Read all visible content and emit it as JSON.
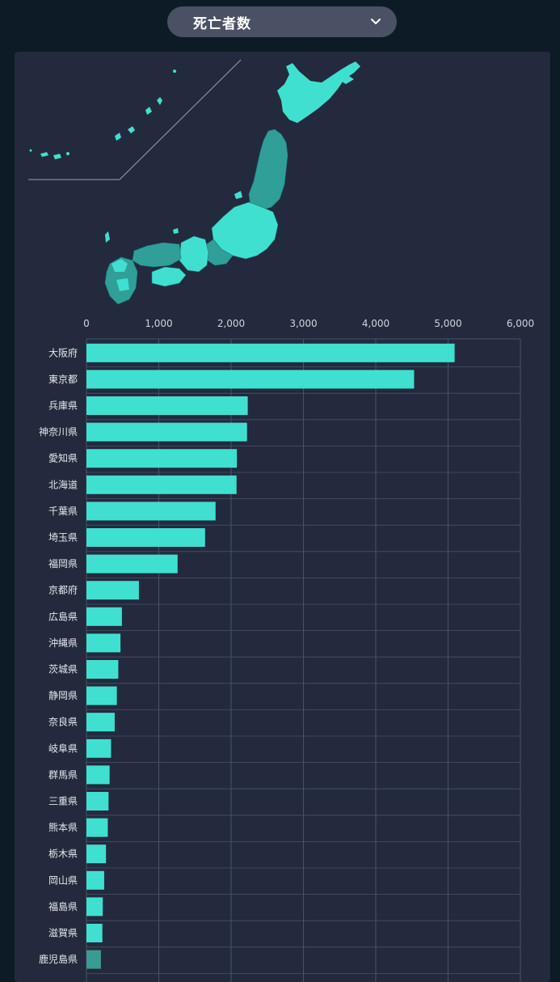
{
  "metric_selector": {
    "selected": "死亡者数",
    "icon": "chevron-down-icon"
  },
  "colors": {
    "background": "#0d1b27",
    "panel": "#232a3d",
    "bar": "#40e0d0",
    "bar_muted": "#3a9a94",
    "map_fill": "#40e0d0",
    "map_dark": "#2f9f98",
    "grid": "#4a5266"
  },
  "chart_data": {
    "type": "bar",
    "orientation": "horizontal",
    "xlim": [
      0,
      6000
    ],
    "x_ticks": [
      "0",
      "1,000",
      "2,000",
      "3,000",
      "4,000",
      "5,000",
      "6,000"
    ],
    "x_tick_values": [
      0,
      1000,
      2000,
      3000,
      4000,
      5000,
      6000
    ],
    "grid": true,
    "categories": [
      "大阪府",
      "東京都",
      "兵庫県",
      "神奈川県",
      "愛知県",
      "北海道",
      "千葉県",
      "埼玉県",
      "福岡県",
      "京都府",
      "広島県",
      "沖縄県",
      "茨城県",
      "静岡県",
      "奈良県",
      "岐阜県",
      "群馬県",
      "三重県",
      "熊本県",
      "栃木県",
      "岡山県",
      "福島県",
      "滋賀県",
      "鹿児島県"
    ],
    "values": [
      5090,
      4530,
      2230,
      2220,
      2080,
      2075,
      1785,
      1640,
      1260,
      725,
      490,
      470,
      440,
      420,
      390,
      340,
      320,
      305,
      295,
      270,
      245,
      225,
      220,
      200
    ]
  }
}
